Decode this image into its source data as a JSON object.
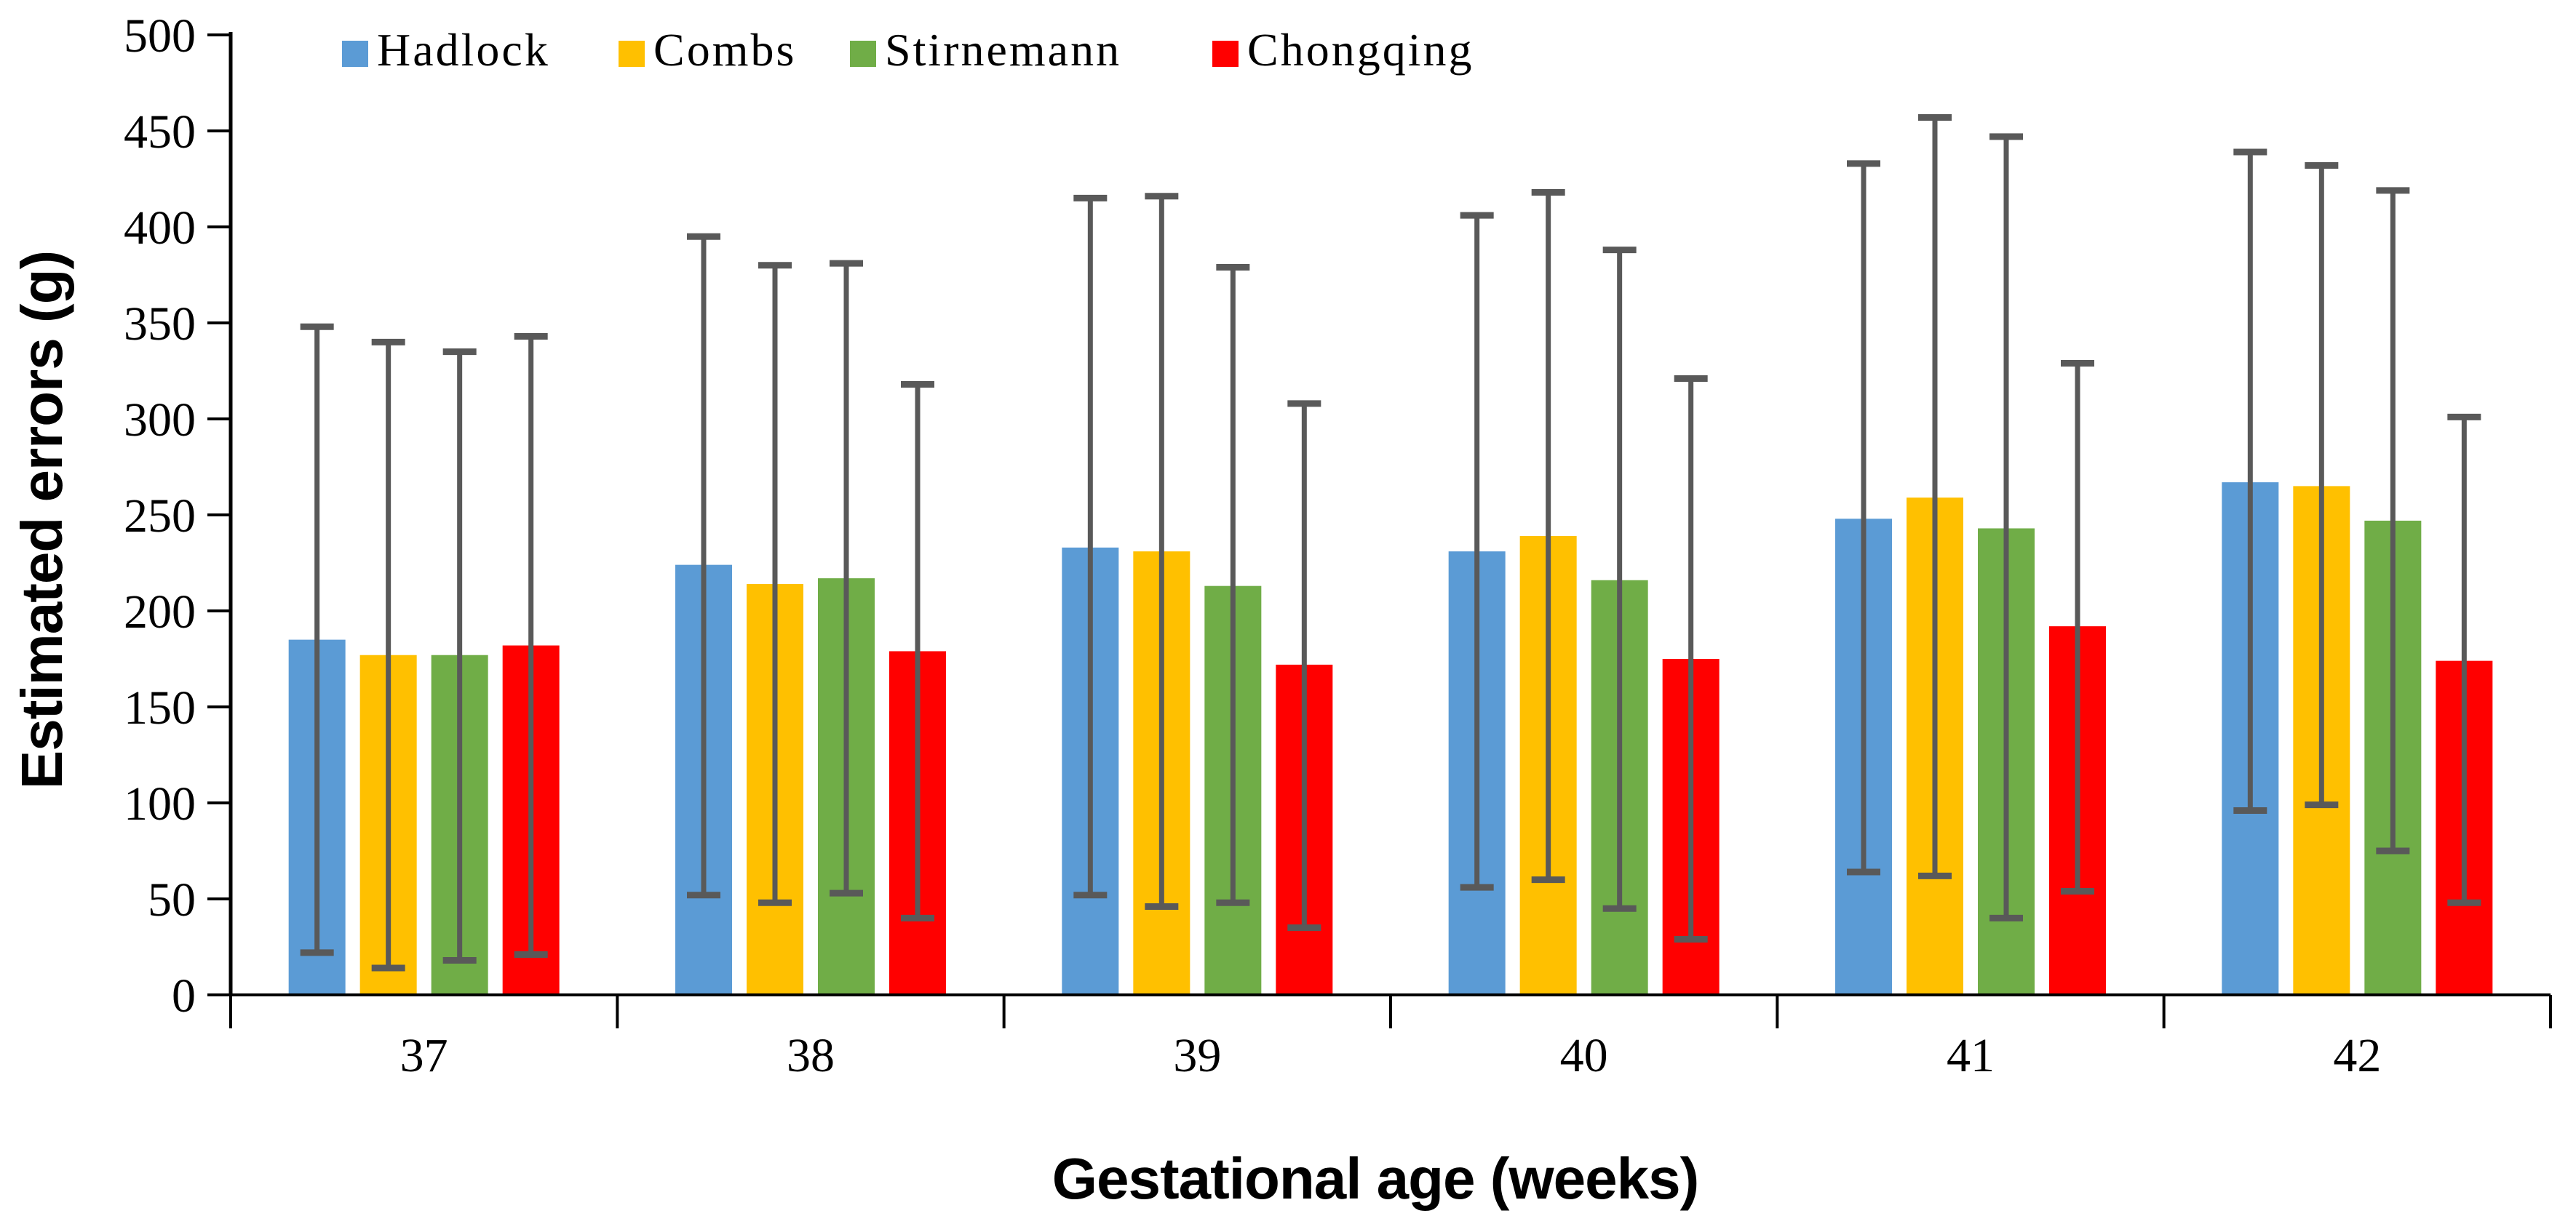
{
  "chart_data": {
    "type": "bar",
    "title": "",
    "xlabel": "Gestational age (weeks)",
    "ylabel": "Estimated errors (g)",
    "ylim": [
      0,
      500
    ],
    "ytick_step": 50,
    "grid": false,
    "legend_position": "top",
    "categories": [
      "37",
      "38",
      "39",
      "40",
      "41",
      "42"
    ],
    "series": [
      {
        "name": "Hadlock",
        "color": "#5B9BD5",
        "values": [
          185,
          224,
          233,
          231,
          248,
          267
        ],
        "err_high": [
          348,
          395,
          415,
          406,
          433,
          439
        ],
        "err_low": [
          22,
          52,
          52,
          56,
          64,
          96
        ]
      },
      {
        "name": "Combs",
        "color": "#FFC000",
        "values": [
          177,
          214,
          231,
          239,
          259,
          265
        ],
        "err_high": [
          340,
          380,
          416,
          418,
          457,
          432
        ],
        "err_low": [
          14,
          48,
          46,
          60,
          62,
          99
        ]
      },
      {
        "name": "Stirnemann",
        "color": "#70AD47",
        "values": [
          177,
          217,
          213,
          216,
          243,
          247
        ],
        "err_high": [
          335,
          381,
          379,
          388,
          447,
          419
        ],
        "err_low": [
          18,
          53,
          48,
          45,
          40,
          75
        ]
      },
      {
        "name": "Chongqing",
        "color": "#FF0000",
        "values": [
          182,
          179,
          172,
          175,
          192,
          174
        ],
        "err_high": [
          343,
          318,
          308,
          321,
          329,
          301
        ],
        "err_low": [
          21,
          40,
          35,
          29,
          54,
          48
        ]
      }
    ],
    "error_bar_color": "#595959",
    "axis_color": "#000000"
  }
}
